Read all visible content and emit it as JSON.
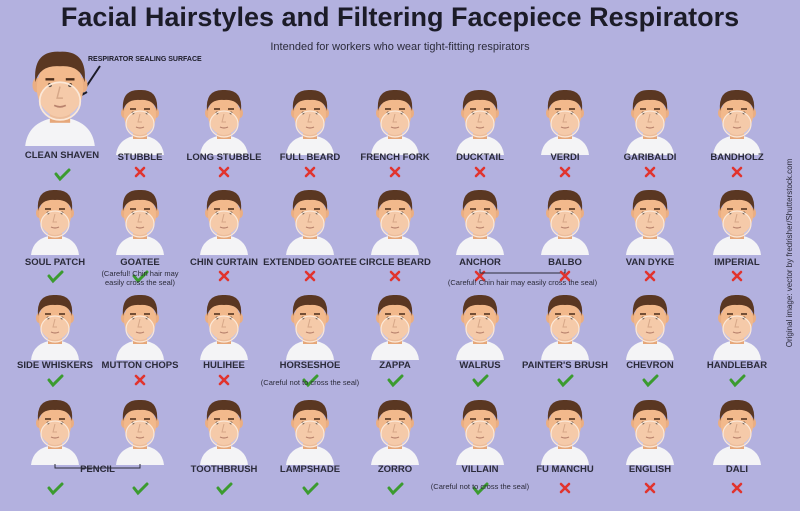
{
  "title": "Facial Hairstyles and Filtering Facepiece Respirators",
  "subtitle": "Intended for workers who wear tight-fitting respirators",
  "annotation": "RESPIRATOR SEALING SURFACE",
  "credit": "Original image: vector by fredrisher/Shutterstock.com",
  "rows": [
    [
      {
        "label": "CLEAN SHAVEN",
        "ok": true
      },
      {
        "label": "STUBBLE",
        "ok": false
      },
      {
        "label": "LONG STUBBLE",
        "ok": false
      },
      {
        "label": "FULL BEARD",
        "ok": false
      },
      {
        "label": "FRENCH FORK",
        "ok": false
      },
      {
        "label": "DUCKTAIL",
        "ok": false
      },
      {
        "label": "VERDI",
        "ok": false
      },
      {
        "label": "GARIBALDI",
        "ok": false
      },
      {
        "label": "BANDHOLZ",
        "ok": false
      }
    ],
    [
      {
        "label": "SOUL PATCH",
        "ok": true
      },
      {
        "label": "GOATEE",
        "ok": true,
        "note": "(Careful! Chin hair may easily cross the seal)"
      },
      {
        "label": "CHIN CURTAIN",
        "ok": false
      },
      {
        "label": "EXTENDED GOATEE",
        "ok": false
      },
      {
        "label": "CIRCLE BEARD",
        "ok": false
      },
      {
        "label": "ANCHOR",
        "ok": false,
        "span_note": "(Careful! Chin hair may easily cross the seal)"
      },
      {
        "label": "BALBO",
        "ok": false
      },
      {
        "label": "VAN DYKE",
        "ok": false
      },
      {
        "label": "IMPERIAL",
        "ok": false
      }
    ],
    [
      {
        "label": "SIDE WHISKERS",
        "ok": true
      },
      {
        "label": "MUTTON CHOPS",
        "ok": false
      },
      {
        "label": "HULIHEE",
        "ok": false
      },
      {
        "label": "HORSESHOE",
        "ok": true,
        "note": "(Careful not to cross the seal)"
      },
      {
        "label": "ZAPPA",
        "ok": true
      },
      {
        "label": "WALRUS",
        "ok": true
      },
      {
        "label": "PAINTER'S BRUSH",
        "ok": true
      },
      {
        "label": "CHEVRON",
        "ok": true
      },
      {
        "label": "HANDLEBAR",
        "ok": true
      }
    ],
    [
      {
        "label": "PENCIL",
        "ok": [
          true,
          true
        ]
      },
      {
        "label": "TOOTHBRUSH",
        "ok": true
      },
      {
        "label": "LAMPSHADE",
        "ok": true
      },
      {
        "label": "ZORRO",
        "ok": true
      },
      {
        "label": "VILLAIN",
        "ok": true,
        "note": "(Careful not to cross the seal)"
      },
      {
        "label": "FU MANCHU",
        "ok": false
      },
      {
        "label": "ENGLISH",
        "ok": false
      },
      {
        "label": "DALI",
        "ok": false
      }
    ]
  ]
}
